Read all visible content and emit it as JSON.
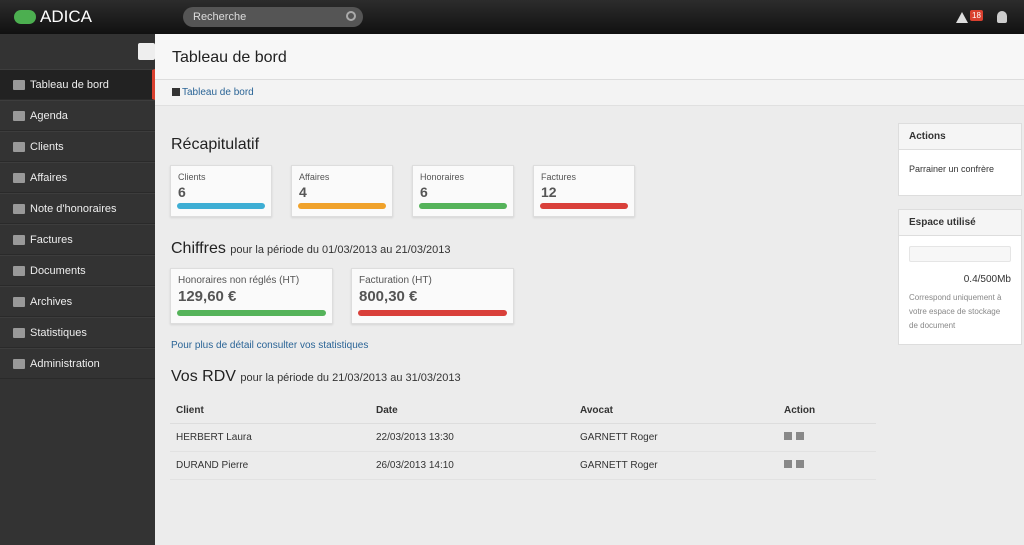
{
  "header": {
    "brand": "ADICA",
    "search_placeholder": "Recherche",
    "alerts": "18"
  },
  "sidebar": {
    "items": [
      "Tableau de bord",
      "Agenda",
      "Clients",
      "Affaires",
      "Note d'honoraires",
      "Factures",
      "Documents",
      "Archives",
      "Statistiques",
      "Administration"
    ]
  },
  "page": {
    "title": "Tableau de bord",
    "breadcrumb": "Tableau de bord"
  },
  "summary": {
    "title": "Récapitulatif",
    "cards": [
      {
        "label": "Clients",
        "value": 6
      },
      {
        "label": "Affaires",
        "value": 4
      },
      {
        "label": "Honoraires",
        "value": 6
      },
      {
        "label": "Factures",
        "value": 12
      }
    ]
  },
  "figures": {
    "title": "Chiffres",
    "period": "pour la période du 01/03/2013 au 21/03/2013",
    "cards": [
      {
        "label": "Honoraires non réglés (HT)",
        "value": "129,60 €"
      },
      {
        "label": "Facturation (HT)",
        "value": "800,30 €"
      }
    ]
  },
  "stats_link": "Pour plus de détail consulter vos statistiques",
  "rdv": {
    "title": "Vos RDV",
    "period": "pour la période du 21/03/2013 au 31/03/2013",
    "columns": [
      "Client",
      "Date",
      "Avocat",
      "Action"
    ],
    "rows": [
      [
        "HERBERT Laura",
        "22/03/2013 13:30",
        "GARNETT Roger"
      ],
      [
        "DURAND Pierre",
        "26/03/2013 14:10",
        "GARNETT Roger"
      ]
    ]
  },
  "actions": {
    "title": "Actions",
    "items": [
      "Parrainer un confrère"
    ]
  },
  "storage": {
    "title": "Espace utilisé",
    "usage": "0.4/500Mb",
    "note": "Correspond uniquement à votre espace de stockage de document"
  }
}
